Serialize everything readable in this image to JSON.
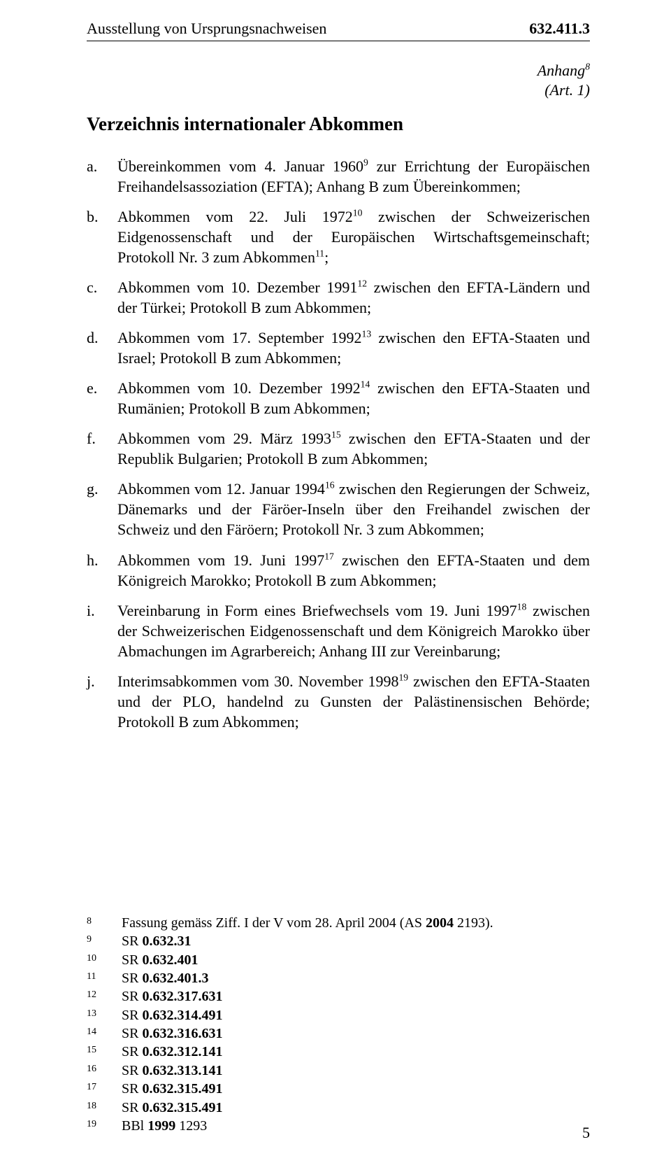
{
  "header": {
    "left": "Ausstellung von Ursprungsnachweisen",
    "right": "632.411.3"
  },
  "anhang": {
    "line1": "Anhang",
    "sup": "8",
    "line2": "(Art. 1)"
  },
  "title": "Verzeichnis internationaler Abkommen",
  "items": [
    {
      "label": "a.",
      "pre": "Übereinkommen vom 4. Januar 1960",
      "sup": "9",
      "post": " zur Errichtung der Europäischen Freihandelsassoziation (EFTA); Anhang B zum Übereinkommen;"
    },
    {
      "label": "b.",
      "pre": "Abkommen vom 22. Juli 1972",
      "sup": "10",
      "post": " zwischen der Schweizerischen Eidgenossenschaft und der Europäischen Wirtschaftsgemeinschaft; Protokoll Nr. 3 zum Abkommen",
      "sup2": "11",
      "post2": ";"
    },
    {
      "label": "c.",
      "pre": "Abkommen vom 10. Dezember 1991",
      "sup": "12",
      "post": " zwischen den EFTA-Ländern und der Türkei; Protokoll B zum Abkommen;"
    },
    {
      "label": "d.",
      "pre": "Abkommen vom 17. September 1992",
      "sup": "13",
      "post": " zwischen den EFTA-Staaten und Israel; Protokoll B zum Abkommen;"
    },
    {
      "label": "e.",
      "pre": "Abkommen vom 10. Dezember 1992",
      "sup": "14",
      "post": " zwischen den EFTA-Staaten und Rumänien; Protokoll B zum Abkommen;"
    },
    {
      "label": "f.",
      "pre": "Abkommen vom 29. März 1993",
      "sup": "15",
      "post": " zwischen den EFTA-Staaten und der Republik Bulgarien; Protokoll B zum Abkommen;"
    },
    {
      "label": "g.",
      "pre": "Abkommen vom 12. Januar 1994",
      "sup": "16",
      "post": " zwischen den Regierungen der Schweiz, Dänemarks und der Färöer-Inseln über den Freihandel zwischen der Schweiz und den Färöern; Protokoll Nr. 3 zum Abkommen;"
    },
    {
      "label": "h.",
      "pre": "Abkommen vom 19. Juni 1997",
      "sup": "17",
      "post": " zwischen den EFTA-Staaten und dem Königreich Marokko; Protokoll B zum Abkommen;"
    },
    {
      "label": "i.",
      "pre": "Vereinbarung in Form eines Briefwechsels vom 19. Juni 1997",
      "sup": "18",
      "post": " zwischen der Schweizerischen Eidgenossenschaft und dem Königreich Marokko über Abmachungen im Agrarbereich; Anhang III zur Vereinbarung;"
    },
    {
      "label": "j.",
      "pre": "Interimsabkommen vom 30. November 1998",
      "sup": "19",
      "post": " zwischen den EFTA-Staaten und der PLO, handelnd zu Gunsten der Palästinensischen Behörde; Protokoll B zum Abkommen;"
    }
  ],
  "footnotes": [
    {
      "num": "8",
      "text": "Fassung gemäss Ziff. I der V vom 28. April 2004 (AS 2004 2193)."
    },
    {
      "num": "9",
      "text": "SR 0.632.31"
    },
    {
      "num": "10",
      "text": "SR 0.632.401"
    },
    {
      "num": "11",
      "text": "SR 0.632.401.3"
    },
    {
      "num": "12",
      "text": "SR 0.632.317.631"
    },
    {
      "num": "13",
      "text": "SR 0.632.314.491"
    },
    {
      "num": "14",
      "text": "SR 0.632.316.631"
    },
    {
      "num": "15",
      "text": "SR 0.632.312.141"
    },
    {
      "num": "16",
      "text": "SR 0.632.313.141"
    },
    {
      "num": "17",
      "text": "SR 0.632.315.491"
    },
    {
      "num": "18",
      "text": "SR 0.632.315.491"
    },
    {
      "num": "19",
      "text": "BBl 1999 1293"
    }
  ],
  "pageNumber": "5",
  "sr_bold": "SR ",
  "bbl_plain": "BBl ",
  "year_bold": "1999"
}
